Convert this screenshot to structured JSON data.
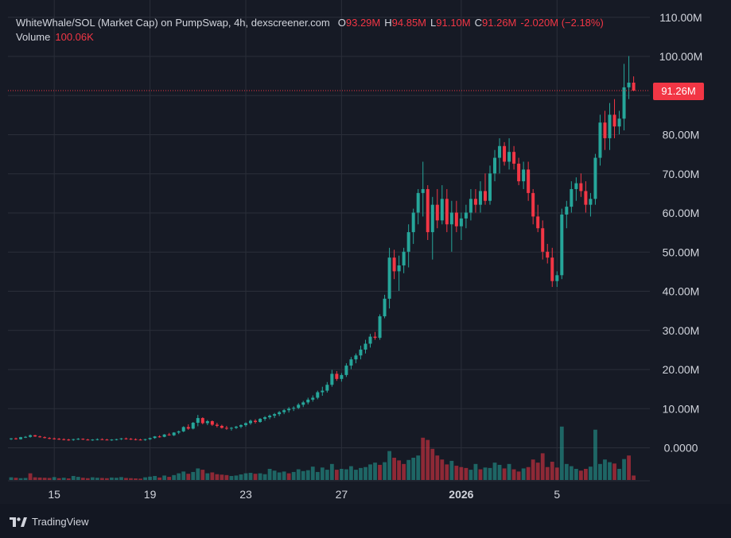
{
  "header": {
    "pair_title": "WhiteWhale/SOL (Market Cap) on PumpSwap, 4h, dexscreener.com",
    "ohlc": [
      {
        "key": "O",
        "value": "93.29M"
      },
      {
        "key": "H",
        "value": "94.85M"
      },
      {
        "key": "L",
        "value": "91.10M"
      },
      {
        "key": "C",
        "value": "91.26M"
      },
      {
        "key": "",
        "value": "-2.020M (−2.18%)"
      }
    ],
    "volume_label": "Volume",
    "volume_value": "100.06K"
  },
  "price_badge": "91.26M",
  "brand": {
    "name": "TradingView",
    "logo_icon": "tradingview-logo-icon"
  },
  "colors": {
    "up": "#26a69a",
    "down": "#f23645",
    "background": "#161a25",
    "grid": "#2a2e39"
  },
  "chart_data": {
    "type": "candlestick",
    "y_ticks": [
      "110.00M",
      "100.00M",
      "90.00M",
      "80.00M",
      "70.00M",
      "60.00M",
      "50.00M",
      "40.00M",
      "30.00M",
      "20.00M",
      "10.00M",
      "0.0000"
    ],
    "y_tick_values": [
      110,
      100,
      90,
      80,
      70,
      60,
      50,
      40,
      30,
      20,
      10,
      0
    ],
    "ylim": [
      -8,
      112
    ],
    "x_ticks": [
      {
        "label": "15",
        "index": 9,
        "bold": false
      },
      {
        "label": "19",
        "index": 29,
        "bold": false
      },
      {
        "label": "23",
        "index": 49,
        "bold": false
      },
      {
        "label": "27",
        "index": 69,
        "bold": false
      },
      {
        "label": "2026",
        "index": 94,
        "bold": true
      },
      {
        "label": "5",
        "index": 114,
        "bold": false
      }
    ],
    "last_price": 91.26,
    "candles": [
      [
        2.3,
        2.5,
        2.0,
        2.4
      ],
      [
        2.4,
        2.6,
        2.1,
        2.2
      ],
      [
        2.2,
        2.8,
        2.1,
        2.7
      ],
      [
        2.7,
        3.0,
        2.5,
        2.8
      ],
      [
        2.8,
        3.4,
        2.6,
        3.2
      ],
      [
        3.2,
        3.3,
        2.8,
        2.9
      ],
      [
        2.9,
        3.1,
        2.6,
        2.7
      ],
      [
        2.7,
        2.9,
        2.4,
        2.5
      ],
      [
        2.5,
        2.7,
        2.2,
        2.4
      ],
      [
        2.4,
        2.6,
        2.1,
        2.3
      ],
      [
        2.3,
        2.5,
        2.0,
        2.2
      ],
      [
        2.2,
        2.4,
        1.9,
        2.1
      ],
      [
        2.1,
        2.3,
        1.8,
        2.0
      ],
      [
        2.0,
        2.3,
        1.8,
        2.2
      ],
      [
        2.2,
        2.5,
        2.0,
        2.3
      ],
      [
        2.3,
        2.4,
        2.0,
        2.1
      ],
      [
        2.1,
        2.3,
        1.9,
        2.0
      ],
      [
        2.0,
        2.2,
        1.8,
        2.1
      ],
      [
        2.1,
        2.4,
        1.9,
        2.2
      ],
      [
        2.2,
        2.4,
        2.0,
        2.1
      ],
      [
        2.1,
        2.3,
        1.9,
        2.0
      ],
      [
        2.0,
        2.2,
        1.8,
        2.1
      ],
      [
        2.1,
        2.3,
        1.9,
        2.2
      ],
      [
        2.2,
        2.5,
        2.0,
        2.4
      ],
      [
        2.4,
        2.6,
        2.1,
        2.3
      ],
      [
        2.3,
        2.5,
        2.0,
        2.2
      ],
      [
        2.2,
        2.4,
        1.9,
        2.1
      ],
      [
        2.1,
        2.3,
        1.9,
        2.0
      ],
      [
        2.0,
        2.3,
        1.8,
        2.2
      ],
      [
        2.2,
        2.6,
        2.0,
        2.5
      ],
      [
        2.5,
        3.0,
        2.3,
        2.9
      ],
      [
        2.9,
        3.2,
        2.6,
        2.8
      ],
      [
        2.8,
        3.5,
        2.7,
        3.4
      ],
      [
        3.4,
        3.8,
        3.1,
        3.2
      ],
      [
        3.2,
        4.0,
        3.0,
        3.9
      ],
      [
        3.9,
        4.4,
        3.5,
        4.2
      ],
      [
        4.2,
        5.5,
        4.0,
        5.3
      ],
      [
        5.3,
        6.0,
        4.6,
        4.9
      ],
      [
        4.9,
        6.6,
        4.7,
        6.4
      ],
      [
        6.4,
        8.4,
        5.5,
        7.6
      ],
      [
        7.6,
        7.8,
        6.0,
        6.3
      ],
      [
        6.3,
        7.1,
        5.8,
        6.8
      ],
      [
        6.8,
        7.0,
        5.6,
        5.9
      ],
      [
        5.9,
        6.4,
        5.2,
        5.6
      ],
      [
        5.6,
        5.9,
        4.9,
        5.1
      ],
      [
        5.1,
        5.6,
        4.6,
        4.9
      ],
      [
        4.9,
        5.3,
        4.4,
        5.1
      ],
      [
        5.1,
        5.6,
        4.8,
        5.4
      ],
      [
        5.4,
        6.0,
        5.0,
        5.8
      ],
      [
        5.8,
        6.5,
        5.4,
        6.3
      ],
      [
        6.3,
        7.2,
        5.9,
        6.9
      ],
      [
        6.9,
        7.3,
        6.2,
        6.6
      ],
      [
        6.6,
        7.6,
        6.4,
        7.4
      ],
      [
        7.4,
        8.1,
        6.9,
        7.8
      ],
      [
        7.8,
        8.5,
        7.3,
        8.2
      ],
      [
        8.2,
        8.9,
        7.6,
        8.6
      ],
      [
        8.6,
        9.4,
        8.1,
        9.1
      ],
      [
        9.1,
        9.9,
        8.6,
        9.6
      ],
      [
        9.6,
        10.4,
        9.0,
        10.0
      ],
      [
        10.0,
        10.6,
        9.4,
        10.2
      ],
      [
        10.2,
        11.4,
        9.9,
        11.0
      ],
      [
        11.0,
        12.0,
        10.4,
        11.6
      ],
      [
        11.6,
        12.8,
        11.1,
        12.3
      ],
      [
        12.3,
        13.4,
        11.8,
        12.8
      ],
      [
        12.8,
        14.6,
        12.4,
        14.2
      ],
      [
        14.2,
        15.6,
        13.3,
        14.6
      ],
      [
        14.6,
        16.8,
        14.1,
        16.1
      ],
      [
        16.1,
        19.9,
        15.6,
        18.9
      ],
      [
        18.9,
        19.6,
        17.1,
        17.6
      ],
      [
        17.6,
        19.1,
        16.9,
        18.6
      ],
      [
        18.6,
        21.6,
        18.1,
        21.0
      ],
      [
        21.0,
        23.2,
        20.1,
        22.6
      ],
      [
        22.6,
        24.1,
        21.6,
        23.6
      ],
      [
        23.6,
        26.1,
        22.6,
        25.1
      ],
      [
        25.1,
        27.6,
        24.1,
        26.6
      ],
      [
        26.6,
        29.1,
        25.6,
        28.4
      ],
      [
        28.4,
        29.6,
        27.6,
        28.1
      ],
      [
        28.1,
        34.1,
        27.6,
        33.6
      ],
      [
        33.6,
        39.1,
        33.1,
        38.1
      ],
      [
        38.1,
        51.1,
        35.6,
        48.6
      ],
      [
        48.6,
        50.6,
        43.1,
        45.1
      ],
      [
        45.1,
        49.1,
        40.1,
        46.6
      ],
      [
        46.6,
        51.1,
        44.6,
        50.1
      ],
      [
        50.1,
        57.1,
        46.1,
        55.1
      ],
      [
        55.1,
        61.1,
        52.1,
        60.1
      ],
      [
        60.1,
        66.1,
        57.1,
        65.1
      ],
      [
        65.1,
        73.1,
        59.1,
        66.1
      ],
      [
        66.1,
        67.1,
        53.1,
        55.1
      ],
      [
        55.1,
        64.1,
        48.1,
        62.1
      ],
      [
        62.1,
        66.1,
        56.1,
        58.1
      ],
      [
        58.1,
        67.1,
        57.1,
        63.6
      ],
      [
        63.6,
        66.1,
        55.1,
        57.1
      ],
      [
        57.1,
        63.1,
        50.1,
        60.1
      ],
      [
        60.1,
        63.1,
        55.1,
        56.6
      ],
      [
        56.6,
        60.1,
        53.1,
        58.6
      ],
      [
        58.6,
        62.1,
        56.1,
        60.1
      ],
      [
        60.1,
        66.1,
        58.1,
        63.6
      ],
      [
        63.6,
        66.1,
        60.1,
        62.1
      ],
      [
        62.1,
        68.1,
        60.1,
        65.6
      ],
      [
        65.6,
        70.1,
        62.1,
        63.1
      ],
      [
        63.1,
        72.1,
        62.1,
        70.1
      ],
      [
        70.1,
        76.1,
        68.1,
        74.1
      ],
      [
        74.1,
        79.1,
        70.1,
        77.1
      ],
      [
        77.1,
        78.1,
        72.1,
        73.1
      ],
      [
        73.1,
        79.1,
        71.1,
        75.6
      ],
      [
        75.6,
        77.1,
        71.1,
        72.6
      ],
      [
        72.6,
        74.1,
        67.1,
        68.1
      ],
      [
        68.1,
        73.1,
        66.1,
        71.1
      ],
      [
        71.1,
        73.1,
        63.1,
        65.1
      ],
      [
        65.1,
        66.1,
        57.1,
        59.1
      ],
      [
        59.1,
        62.1,
        55.1,
        56.1
      ],
      [
        56.1,
        58.1,
        48.1,
        50.1
      ],
      [
        50.1,
        52.1,
        47.1,
        48.6
      ],
      [
        48.6,
        51.1,
        41.1,
        42.6
      ],
      [
        42.6,
        45.1,
        41.1,
        44.1
      ],
      [
        44.1,
        61.1,
        43.1,
        59.6
      ],
      [
        59.6,
        63.1,
        56.1,
        61.6
      ],
      [
        61.6,
        68.1,
        60.1,
        66.1
      ],
      [
        66.1,
        69.1,
        63.1,
        67.6
      ],
      [
        67.6,
        70.1,
        64.1,
        65.6
      ],
      [
        65.6,
        68.1,
        60.1,
        62.1
      ],
      [
        62.1,
        65.1,
        59.1,
        63.6
      ],
      [
        63.6,
        75.1,
        62.1,
        74.1
      ],
      [
        74.1,
        85.1,
        72.1,
        83.1
      ],
      [
        83.1,
        86.1,
        76.1,
        79.1
      ],
      [
        79.1,
        88.1,
        76.1,
        85.1
      ],
      [
        85.1,
        89.1,
        79.1,
        82.1
      ],
      [
        82.1,
        86.1,
        80.1,
        84.1
      ],
      [
        84.1,
        98.1,
        81.1,
        92.1
      ],
      [
        92.1,
        100.1,
        89.1,
        93.3
      ],
      [
        93.3,
        94.9,
        91.1,
        91.26
      ]
    ],
    "volumes": [
      [
        0.12,
        "up"
      ],
      [
        0.1,
        "down"
      ],
      [
        0.08,
        "up"
      ],
      [
        0.09,
        "up"
      ],
      [
        0.3,
        "down"
      ],
      [
        0.12,
        "down"
      ],
      [
        0.11,
        "down"
      ],
      [
        0.1,
        "down"
      ],
      [
        0.09,
        "down"
      ],
      [
        0.13,
        "up"
      ],
      [
        0.08,
        "down"
      ],
      [
        0.1,
        "up"
      ],
      [
        0.07,
        "down"
      ],
      [
        0.18,
        "up"
      ],
      [
        0.14,
        "up"
      ],
      [
        0.1,
        "down"
      ],
      [
        0.08,
        "down"
      ],
      [
        0.12,
        "up"
      ],
      [
        0.1,
        "up"
      ],
      [
        0.09,
        "down"
      ],
      [
        0.08,
        "down"
      ],
      [
        0.11,
        "up"
      ],
      [
        0.1,
        "up"
      ],
      [
        0.13,
        "up"
      ],
      [
        0.09,
        "down"
      ],
      [
        0.08,
        "down"
      ],
      [
        0.07,
        "down"
      ],
      [
        0.06,
        "down"
      ],
      [
        0.12,
        "up"
      ],
      [
        0.15,
        "up"
      ],
      [
        0.18,
        "up"
      ],
      [
        0.11,
        "down"
      ],
      [
        0.2,
        "up"
      ],
      [
        0.14,
        "down"
      ],
      [
        0.22,
        "up"
      ],
      [
        0.3,
        "up"
      ],
      [
        0.38,
        "up"
      ],
      [
        0.28,
        "down"
      ],
      [
        0.36,
        "up"
      ],
      [
        0.52,
        "up"
      ],
      [
        0.46,
        "down"
      ],
      [
        0.3,
        "up"
      ],
      [
        0.34,
        "down"
      ],
      [
        0.26,
        "down"
      ],
      [
        0.24,
        "down"
      ],
      [
        0.22,
        "down"
      ],
      [
        0.18,
        "up"
      ],
      [
        0.2,
        "up"
      ],
      [
        0.25,
        "up"
      ],
      [
        0.3,
        "up"
      ],
      [
        0.32,
        "up"
      ],
      [
        0.28,
        "down"
      ],
      [
        0.3,
        "up"
      ],
      [
        0.26,
        "up"
      ],
      [
        0.5,
        "up"
      ],
      [
        0.42,
        "up"
      ],
      [
        0.34,
        "up"
      ],
      [
        0.38,
        "up"
      ],
      [
        0.3,
        "down"
      ],
      [
        0.36,
        "up"
      ],
      [
        0.48,
        "up"
      ],
      [
        0.4,
        "up"
      ],
      [
        0.44,
        "up"
      ],
      [
        0.6,
        "up"
      ],
      [
        0.36,
        "up"
      ],
      [
        0.56,
        "up"
      ],
      [
        0.46,
        "up"
      ],
      [
        0.72,
        "up"
      ],
      [
        0.46,
        "down"
      ],
      [
        0.5,
        "up"
      ],
      [
        0.48,
        "up"
      ],
      [
        0.62,
        "up"
      ],
      [
        0.46,
        "up"
      ],
      [
        0.54,
        "up"
      ],
      [
        0.58,
        "up"
      ],
      [
        0.7,
        "up"
      ],
      [
        0.78,
        "up"
      ],
      [
        0.68,
        "down"
      ],
      [
        0.8,
        "up"
      ],
      [
        1.3,
        "up"
      ],
      [
        1.0,
        "down"
      ],
      [
        0.88,
        "down"
      ],
      [
        0.72,
        "down"
      ],
      [
        0.9,
        "up"
      ],
      [
        1.0,
        "up"
      ],
      [
        1.1,
        "up"
      ],
      [
        1.9,
        "down"
      ],
      [
        1.8,
        "down"
      ],
      [
        1.4,
        "down"
      ],
      [
        1.1,
        "down"
      ],
      [
        0.92,
        "down"
      ],
      [
        0.7,
        "down"
      ],
      [
        0.86,
        "up"
      ],
      [
        0.64,
        "down"
      ],
      [
        0.58,
        "down"
      ],
      [
        0.54,
        "down"
      ],
      [
        0.46,
        "up"
      ],
      [
        0.72,
        "up"
      ],
      [
        0.48,
        "down"
      ],
      [
        0.56,
        "up"
      ],
      [
        0.54,
        "up"
      ],
      [
        0.78,
        "up"
      ],
      [
        0.68,
        "up"
      ],
      [
        0.52,
        "down"
      ],
      [
        0.72,
        "up"
      ],
      [
        0.48,
        "down"
      ],
      [
        0.38,
        "down"
      ],
      [
        0.52,
        "up"
      ],
      [
        0.58,
        "down"
      ],
      [
        0.92,
        "down"
      ],
      [
        0.78,
        "down"
      ],
      [
        1.2,
        "down"
      ],
      [
        0.58,
        "down"
      ],
      [
        0.82,
        "down"
      ],
      [
        0.56,
        "down"
      ],
      [
        2.4,
        "up"
      ],
      [
        0.72,
        "up"
      ],
      [
        0.62,
        "up"
      ],
      [
        0.5,
        "up"
      ],
      [
        0.42,
        "down"
      ],
      [
        0.5,
        "down"
      ],
      [
        0.6,
        "up"
      ],
      [
        2.26,
        "up"
      ],
      [
        0.72,
        "up"
      ],
      [
        0.92,
        "up"
      ],
      [
        0.8,
        "up"
      ],
      [
        0.74,
        "down"
      ],
      [
        0.5,
        "up"
      ],
      [
        0.94,
        "up"
      ],
      [
        1.1,
        "down"
      ],
      [
        0.2,
        "down"
      ]
    ]
  }
}
